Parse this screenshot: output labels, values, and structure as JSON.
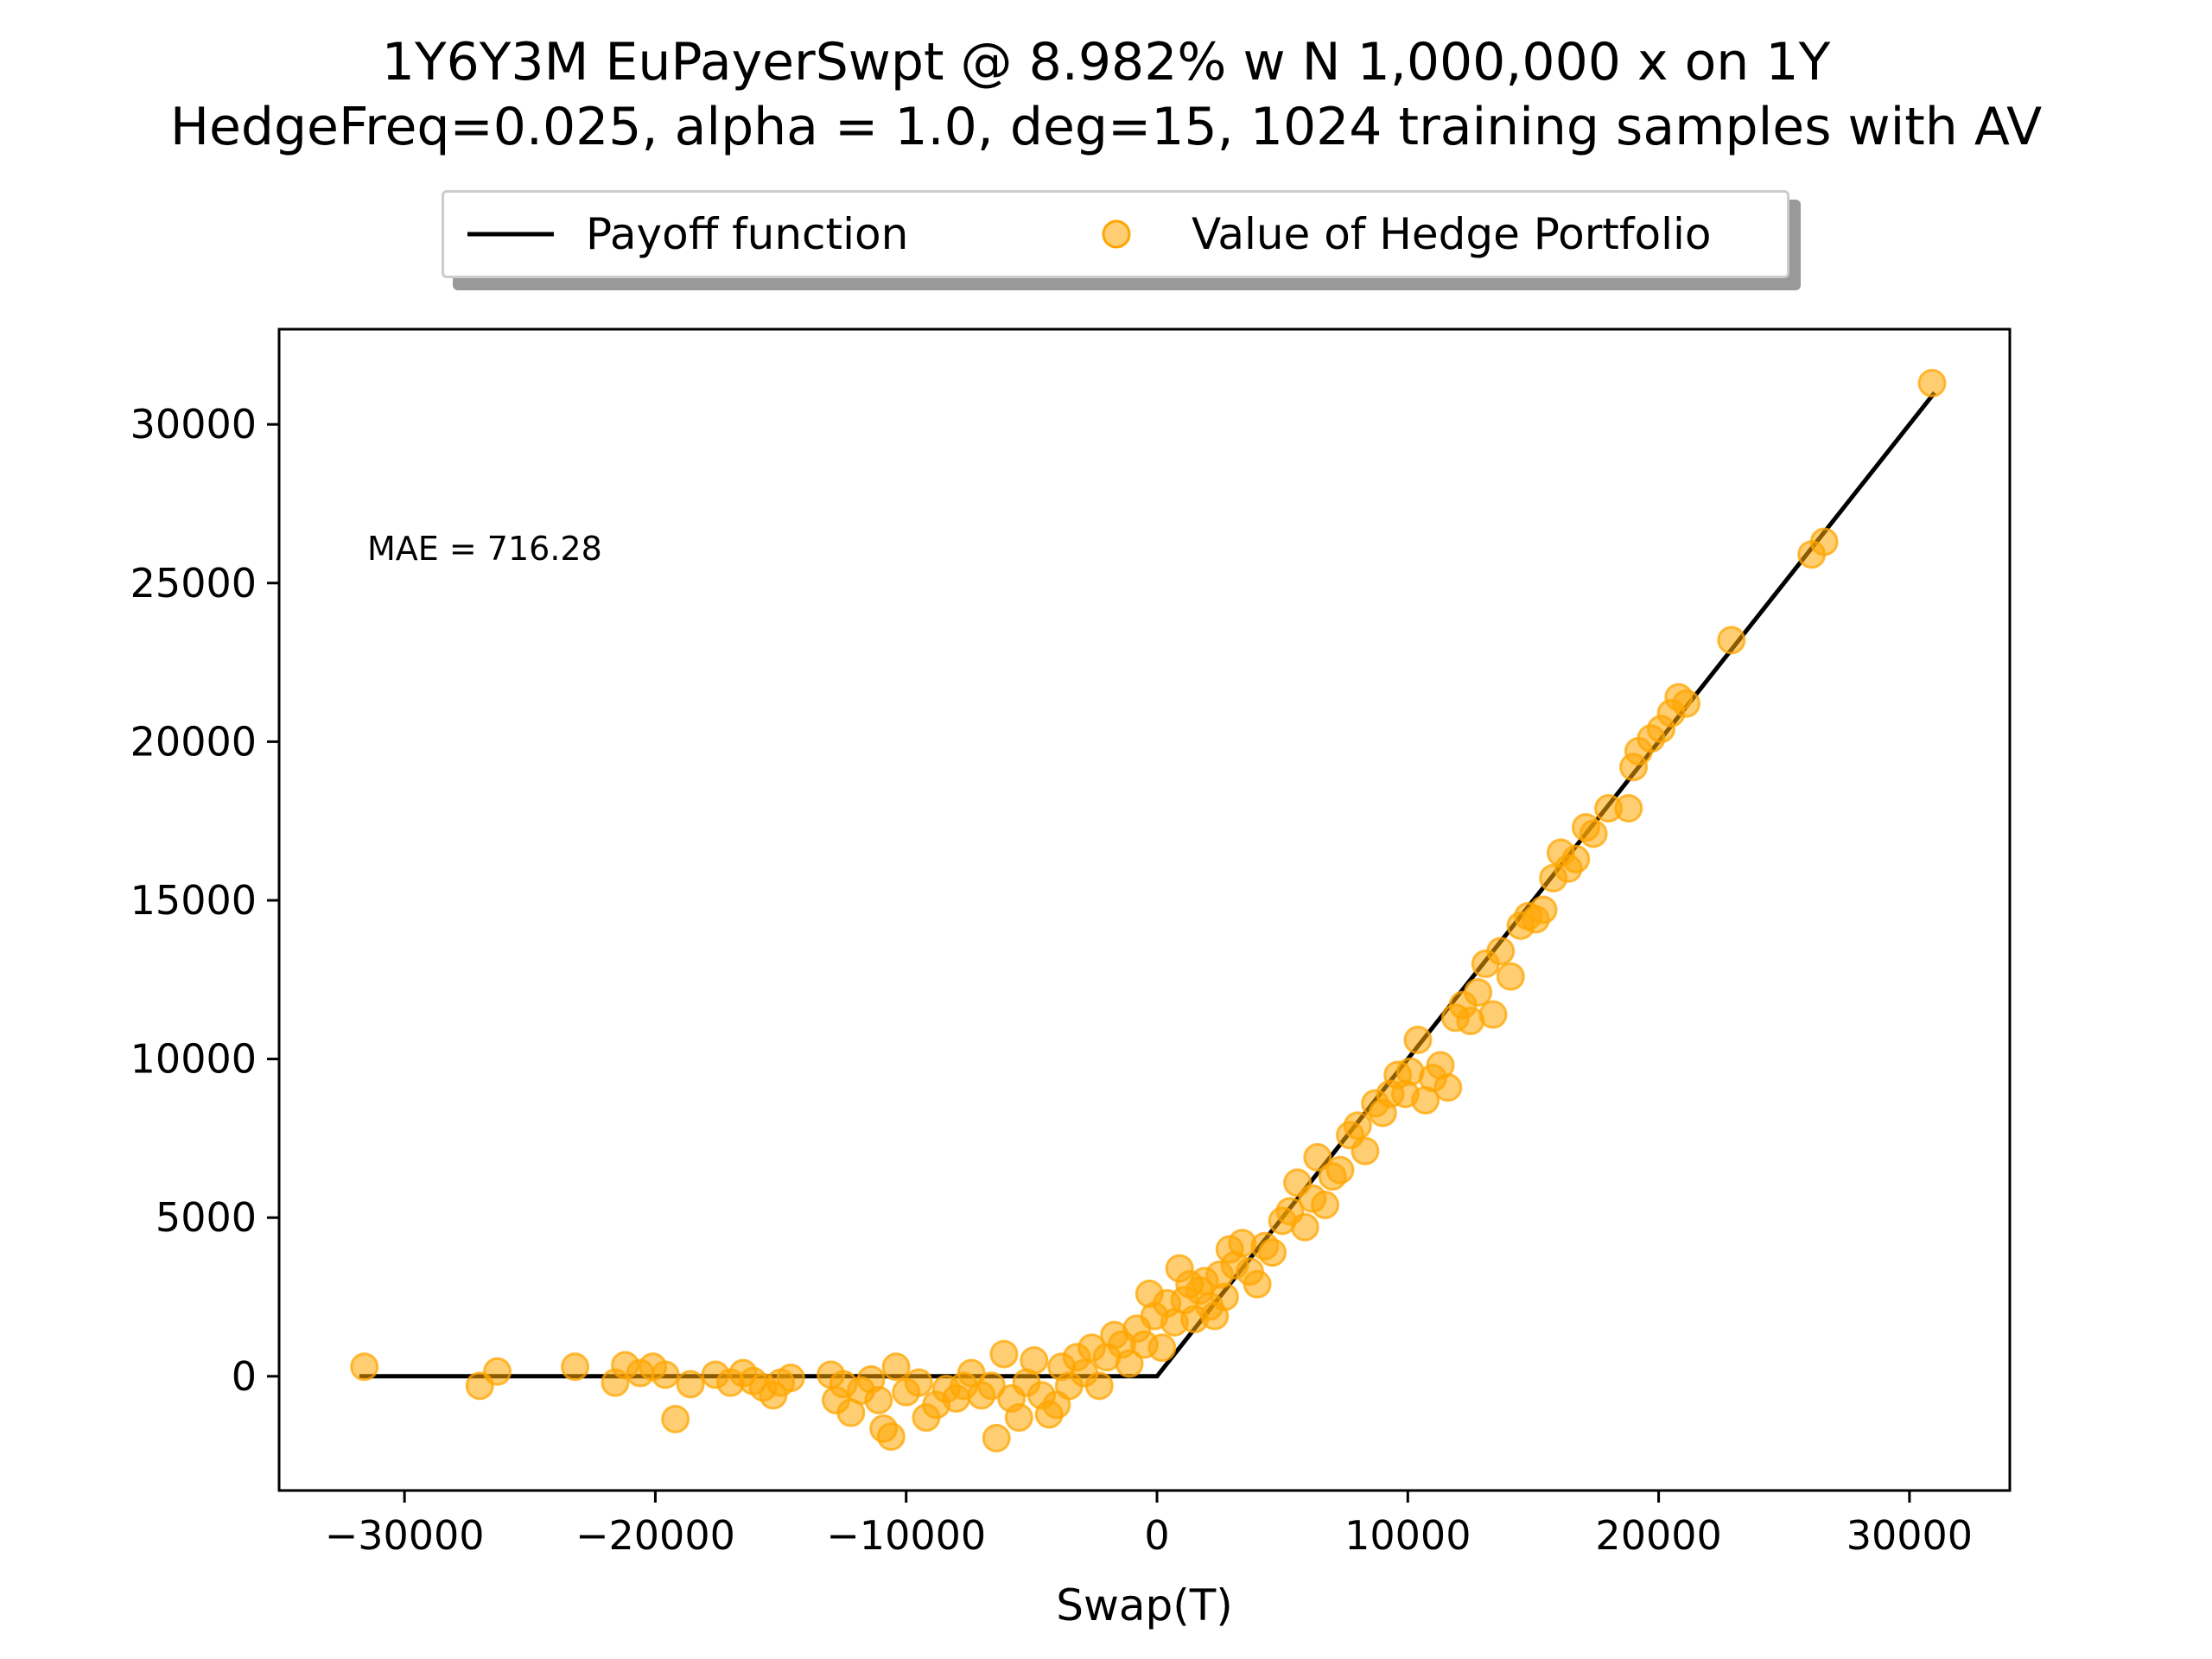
{
  "chart_data": {
    "type": "scatter",
    "title": "1Y6Y3M EuPayerSwpt @ 8.982% w N 1,000,000 x on 1Y",
    "subtitle": "HedgeFreq=0.025, alpha = 1.0, deg=15, 1024 training samples with AV",
    "xlabel": "Swap(T)",
    "ylabel": "",
    "xlim": [
      -35000,
      34000
    ],
    "ylim": [
      -3600,
      33000
    ],
    "xticks": [
      -30000,
      -20000,
      -10000,
      0,
      10000,
      20000,
      30000
    ],
    "yticks": [
      0,
      5000,
      10000,
      15000,
      20000,
      25000,
      30000
    ],
    "xtick_labels": [
      "−30000",
      "−20000",
      "−10000",
      "0",
      "10000",
      "20000",
      "30000"
    ],
    "ytick_labels": [
      "0",
      "5000",
      "10000",
      "15000",
      "20000",
      "25000",
      "30000"
    ],
    "grid": false,
    "legend_position": "top-center",
    "annotation": "MAE = 716.28",
    "series": [
      {
        "name": "Payoff function",
        "kind": "line",
        "color": "#000000",
        "x": [
          -31800,
          0,
          31000
        ],
        "y": [
          0,
          0,
          31000
        ]
      },
      {
        "name": "Value of Hedge Portfolio",
        "kind": "scatter",
        "color": "#ffa500",
        "points": [
          [
            -31600,
            300
          ],
          [
            -27000,
            -300
          ],
          [
            -26300,
            150
          ],
          [
            -23200,
            300
          ],
          [
            -21600,
            -200
          ],
          [
            -21200,
            350
          ],
          [
            -20600,
            100
          ],
          [
            -20100,
            300
          ],
          [
            -19600,
            50
          ],
          [
            -19200,
            -1350
          ],
          [
            -18600,
            -250
          ],
          [
            -17600,
            50
          ],
          [
            -17000,
            -200
          ],
          [
            -16500,
            100
          ],
          [
            -16100,
            -150
          ],
          [
            -15700,
            -350
          ],
          [
            -15300,
            -600
          ],
          [
            -15000,
            -200
          ],
          [
            -14600,
            -50
          ],
          [
            -13000,
            50
          ],
          [
            -12800,
            -750
          ],
          [
            -12500,
            -250
          ],
          [
            -12200,
            -1150
          ],
          [
            -11800,
            -450
          ],
          [
            -11400,
            -100
          ],
          [
            -11100,
            -750
          ],
          [
            -10900,
            -1650
          ],
          [
            -10600,
            -1900
          ],
          [
            -10400,
            300
          ],
          [
            -10000,
            -500
          ],
          [
            -9500,
            -200
          ],
          [
            -9200,
            -1300
          ],
          [
            -8800,
            -900
          ],
          [
            -8400,
            -400
          ],
          [
            -8000,
            -700
          ],
          [
            -7700,
            -300
          ],
          [
            -7400,
            100
          ],
          [
            -7000,
            -600
          ],
          [
            -6600,
            -300
          ],
          [
            -6400,
            -1950
          ],
          [
            -6100,
            700
          ],
          [
            -5800,
            -700
          ],
          [
            -5500,
            -1300
          ],
          [
            -5200,
            -200
          ],
          [
            -4900,
            500
          ],
          [
            -4600,
            -600
          ],
          [
            -4300,
            -1200
          ],
          [
            -4000,
            -900
          ],
          [
            -3800,
            300
          ],
          [
            -3500,
            -300
          ],
          [
            -3200,
            600
          ],
          [
            -2900,
            100
          ],
          [
            -2600,
            900
          ],
          [
            -2300,
            -300
          ],
          [
            -2000,
            600
          ],
          [
            -1700,
            1300
          ],
          [
            -1400,
            1000
          ],
          [
            -1100,
            400
          ],
          [
            -800,
            1500
          ],
          [
            -500,
            1000
          ],
          [
            -300,
            2600
          ],
          [
            -100,
            1900
          ],
          [
            200,
            900
          ],
          [
            400,
            2300
          ],
          [
            700,
            1700
          ],
          [
            900,
            3400
          ],
          [
            1100,
            2400
          ],
          [
            1300,
            2900
          ],
          [
            1500,
            1800
          ],
          [
            1700,
            2700
          ],
          [
            1900,
            3000
          ],
          [
            2100,
            2200
          ],
          [
            2300,
            1900
          ],
          [
            2500,
            3200
          ],
          [
            2700,
            2500
          ],
          [
            2900,
            4000
          ],
          [
            3100,
            3500
          ],
          [
            3400,
            4200
          ],
          [
            3700,
            3300
          ],
          [
            4000,
            2900
          ],
          [
            4300,
            4100
          ],
          [
            4600,
            3900
          ],
          [
            5000,
            4900
          ],
          [
            5300,
            5200
          ],
          [
            5600,
            6100
          ],
          [
            5900,
            4700
          ],
          [
            6200,
            5600
          ],
          [
            6400,
            6900
          ],
          [
            6700,
            5400
          ],
          [
            7000,
            6300
          ],
          [
            7300,
            6500
          ],
          [
            7700,
            7600
          ],
          [
            8000,
            7900
          ],
          [
            8300,
            7100
          ],
          [
            8700,
            8600
          ],
          [
            9000,
            8300
          ],
          [
            9300,
            8900
          ],
          [
            9600,
            9500
          ],
          [
            9900,
            8900
          ],
          [
            10100,
            9600
          ],
          [
            10400,
            10600
          ],
          [
            10700,
            8700
          ],
          [
            11000,
            9400
          ],
          [
            11300,
            9800
          ],
          [
            11600,
            9100
          ],
          [
            11900,
            11300
          ],
          [
            12200,
            11700
          ],
          [
            12500,
            11200
          ],
          [
            12800,
            12100
          ],
          [
            13100,
            13000
          ],
          [
            13400,
            11400
          ],
          [
            13700,
            13400
          ],
          [
            14100,
            12600
          ],
          [
            14500,
            14200
          ],
          [
            14800,
            14500
          ],
          [
            15100,
            14400
          ],
          [
            15400,
            14700
          ],
          [
            15800,
            15700
          ],
          [
            16100,
            16500
          ],
          [
            16400,
            16000
          ],
          [
            16700,
            16300
          ],
          [
            17100,
            17300
          ],
          [
            17400,
            17100
          ],
          [
            18000,
            17900
          ],
          [
            18800,
            17900
          ],
          [
            19000,
            19200
          ],
          [
            19200,
            19700
          ],
          [
            19700,
            20100
          ],
          [
            20100,
            20400
          ],
          [
            20500,
            20900
          ],
          [
            20800,
            21400
          ],
          [
            21100,
            21200
          ],
          [
            22900,
            23200
          ],
          [
            26100,
            25900
          ],
          [
            26600,
            26300
          ],
          [
            30900,
            31300
          ]
        ]
      }
    ]
  }
}
